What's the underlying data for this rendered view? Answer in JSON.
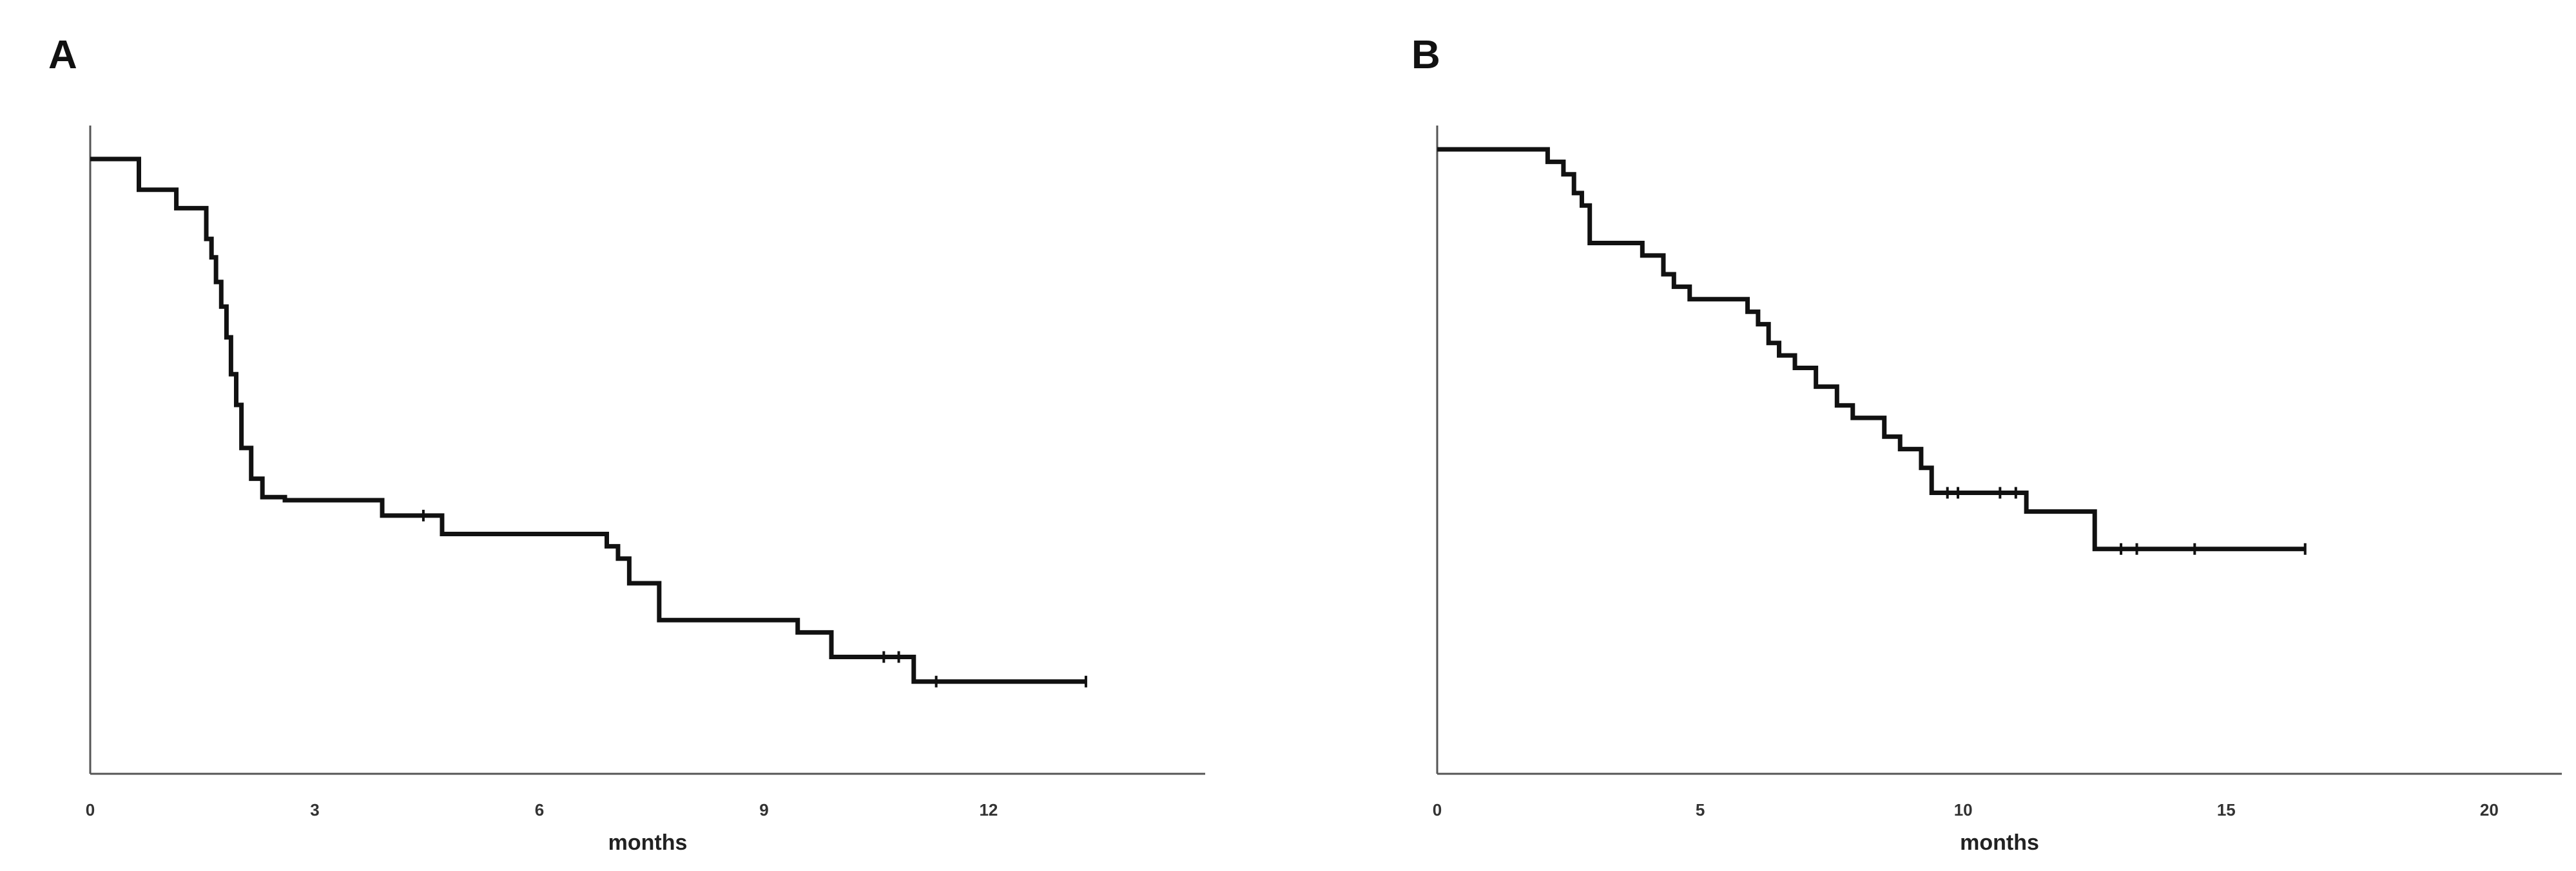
{
  "chart_data": [
    {
      "type": "line",
      "panel_label": "A",
      "xlabel": "months",
      "ylabel": "",
      "title": "",
      "xlim": [
        0,
        14.85
      ],
      "ylim": [
        0,
        1
      ],
      "x_ticks": [
        "0",
        "3",
        "6",
        "9",
        "12"
      ],
      "x_tick_values": [
        0,
        3,
        6,
        9,
        12
      ],
      "grid": false,
      "step": true,
      "series": [
        {
          "values": [
            [
              0,
              1.0
            ],
            [
              0.65,
              0.95
            ],
            [
              1.15,
              0.92
            ],
            [
              1.55,
              0.87
            ],
            [
              1.62,
              0.84
            ],
            [
              1.68,
              0.8
            ],
            [
              1.75,
              0.76
            ],
            [
              1.82,
              0.71
            ],
            [
              1.88,
              0.65
            ],
            [
              1.95,
              0.6
            ],
            [
              2.02,
              0.53
            ],
            [
              2.15,
              0.48
            ],
            [
              2.3,
              0.45
            ],
            [
              2.6,
              0.445
            ],
            [
              3.9,
              0.42
            ],
            [
              4.7,
              0.39
            ],
            [
              6.9,
              0.37
            ],
            [
              7.05,
              0.35
            ],
            [
              7.2,
              0.31
            ],
            [
              7.6,
              0.25
            ],
            [
              9.45,
              0.23
            ],
            [
              9.9,
              0.19
            ],
            [
              11.0,
              0.15
            ],
            [
              13.3,
              0.15
            ]
          ],
          "censored": [
            [
              4.45,
              0.42
            ],
            [
              10.6,
              0.19
            ],
            [
              10.8,
              0.19
            ],
            [
              11.3,
              0.15
            ],
            [
              13.3,
              0.15
            ]
          ]
        }
      ]
    },
    {
      "type": "line",
      "panel_label": "B",
      "xlabel": "months",
      "ylabel": "",
      "title": "",
      "xlim": [
        0,
        21.0
      ],
      "ylim": [
        0,
        1
      ],
      "x_ticks": [
        "0",
        "5",
        "10",
        "15",
        "20"
      ],
      "x_tick_values": [
        0,
        5,
        10,
        15,
        20
      ],
      "grid": false,
      "step": true,
      "series": [
        {
          "values": [
            [
              0,
              1.0
            ],
            [
              2.1,
              0.98
            ],
            [
              2.4,
              0.96
            ],
            [
              2.6,
              0.93
            ],
            [
              2.75,
              0.91
            ],
            [
              2.9,
              0.85
            ],
            [
              3.9,
              0.83
            ],
            [
              4.3,
              0.8
            ],
            [
              4.5,
              0.78
            ],
            [
              4.8,
              0.76
            ],
            [
              5.9,
              0.74
            ],
            [
              6.1,
              0.72
            ],
            [
              6.3,
              0.69
            ],
            [
              6.5,
              0.67
            ],
            [
              6.8,
              0.65
            ],
            [
              7.2,
              0.62
            ],
            [
              7.6,
              0.59
            ],
            [
              7.9,
              0.57
            ],
            [
              8.5,
              0.54
            ],
            [
              8.8,
              0.52
            ],
            [
              9.2,
              0.49
            ],
            [
              9.4,
              0.45
            ],
            [
              11.2,
              0.42
            ],
            [
              12.5,
              0.36
            ],
            [
              16.5,
              0.36
            ]
          ],
          "censored": [
            [
              9.7,
              0.45
            ],
            [
              9.9,
              0.45
            ],
            [
              10.7,
              0.45
            ],
            [
              11.0,
              0.45
            ],
            [
              13.0,
              0.36
            ],
            [
              13.3,
              0.36
            ],
            [
              14.4,
              0.36
            ],
            [
              16.5,
              0.36
            ]
          ]
        }
      ]
    }
  ]
}
